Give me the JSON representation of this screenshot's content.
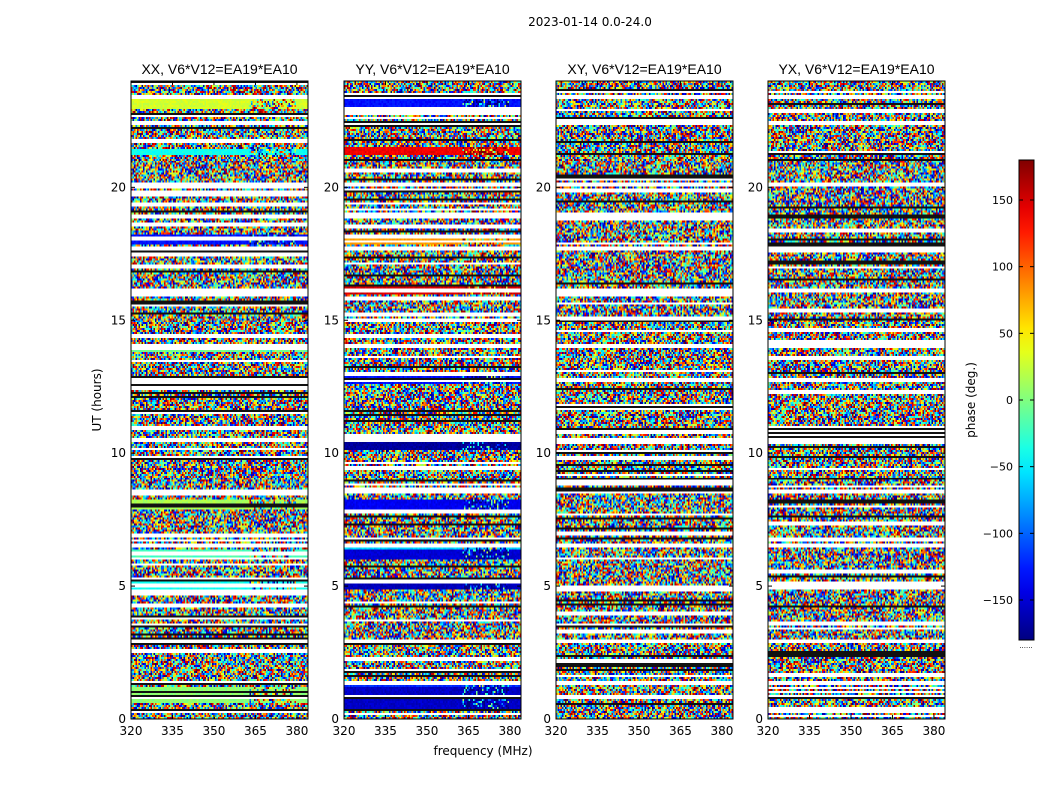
{
  "chart_data": {
    "type": "heatmap",
    "suptitle": "2023-01-14 0.0-24.0",
    "xlabel": "frequency (MHz)",
    "ylabel": "UT (hours)",
    "xlim": [
      320,
      384
    ],
    "ylim": [
      0,
      24
    ],
    "xticks": [
      320,
      335,
      350,
      365,
      380
    ],
    "yticks": [
      0,
      5,
      10,
      15,
      20
    ],
    "colormap": "jet",
    "colorbar": {
      "label": "phase (deg.)",
      "range": [
        -180,
        180
      ],
      "ticks": [
        150,
        100,
        50,
        0,
        -50,
        -100,
        -150
      ],
      "tick_labels": [
        "150",
        "100",
        "50",
        "0",
        "−50",
        "−100",
        "−150"
      ],
      "under_label": "......"
    },
    "panels": [
      {
        "title": "XX, V6*V12=EA19*EA10",
        "flagged_hours": [
          0.9,
          1.4,
          3.0,
          6.6,
          8.6,
          10.6,
          12.8,
          14.1,
          16.2,
          17.8,
          19.0,
          20.2,
          22.5,
          23.5
        ],
        "coherent_bands": [
          {
            "hours": [
              7.95,
              8.25
            ],
            "phase": 15,
            "split_freq": 363
          },
          {
            "hours": [
              6.1,
              6.35
            ],
            "phase": -20,
            "split_freq": 363
          },
          {
            "hours": [
              4.95,
              5.15
            ],
            "phase": -40,
            "split_freq": 363
          },
          {
            "hours": [
              0.7,
              1.2
            ],
            "phase": 5,
            "split_freq": 363
          },
          {
            "hours": [
              13.85,
              14.05
            ],
            "phase": -5,
            "split_freq": 363
          },
          {
            "hours": [
              12.7,
              12.9
            ],
            "phase": -15,
            "split_freq": 363
          },
          {
            "hours": [
              15.95,
              16.2
            ],
            "phase": -70,
            "split_freq": 363
          },
          {
            "hours": [
              17.95,
              18.25
            ],
            "phase": -130,
            "split_freq": 363
          },
          {
            "hours": [
              23.05,
              23.3
            ],
            "phase": 30,
            "split_freq": 363
          },
          {
            "hours": [
              21.3,
              21.45
            ],
            "phase": -40,
            "split_freq": 363
          }
        ]
      },
      {
        "title": "YY, V6*V12=EA19*EA10",
        "flagged_hours": [
          0.9,
          1.4,
          3.0,
          6.6,
          8.6,
          10.6,
          12.8,
          14.1,
          16.2,
          17.8,
          19.0,
          20.2,
          22.5,
          23.5
        ],
        "coherent_bands": [
          {
            "hours": [
              7.95,
              8.25
            ],
            "phase": -140,
            "split_freq": 363
          },
          {
            "hours": [
              6.1,
              6.35
            ],
            "phase": -150,
            "split_freq": 363
          },
          {
            "hours": [
              6.45,
              6.6
            ],
            "phase": -60,
            "split_freq": 363
          },
          {
            "hours": [
              0.4,
              1.2
            ],
            "phase": -155,
            "split_freq": 363
          },
          {
            "hours": [
              1.25,
              1.45
            ],
            "phase": -120,
            "split_freq": 363
          },
          {
            "hours": [
              12.7,
              12.9
            ],
            "phase": -130,
            "split_freq": 363
          },
          {
            "hours": [
              16.05,
              16.3
            ],
            "phase": 150,
            "split_freq": 363
          },
          {
            "hours": [
              17.95,
              18.25
            ],
            "phase": 80,
            "split_freq": 363
          },
          {
            "hours": [
              21.3,
              21.5
            ],
            "phase": 140,
            "split_freq": 363
          },
          {
            "hours": [
              23.05,
              23.3
            ],
            "phase": -130,
            "split_freq": 363
          },
          {
            "hours": [
              4.95,
              5.15
            ],
            "phase": -160,
            "split_freq": 363
          },
          {
            "hours": [
              10.2,
              10.4
            ],
            "phase": -170,
            "split_freq": 363
          }
        ]
      },
      {
        "title": "XY, V6*V12=EA19*EA10",
        "flagged_hours": [
          0.9,
          1.4,
          3.0,
          6.6,
          8.6,
          10.6,
          12.8,
          14.1,
          16.2,
          17.8,
          19.0,
          20.2,
          22.5,
          23.5
        ],
        "coherent_bands": []
      },
      {
        "title": "YX, V6*V12=EA19*EA10",
        "flagged_hours": [
          0.9,
          1.4,
          3.0,
          6.6,
          8.6,
          10.6,
          12.8,
          14.1,
          16.2,
          17.8,
          19.0,
          20.2,
          22.5,
          23.5
        ],
        "coherent_bands": []
      }
    ]
  }
}
